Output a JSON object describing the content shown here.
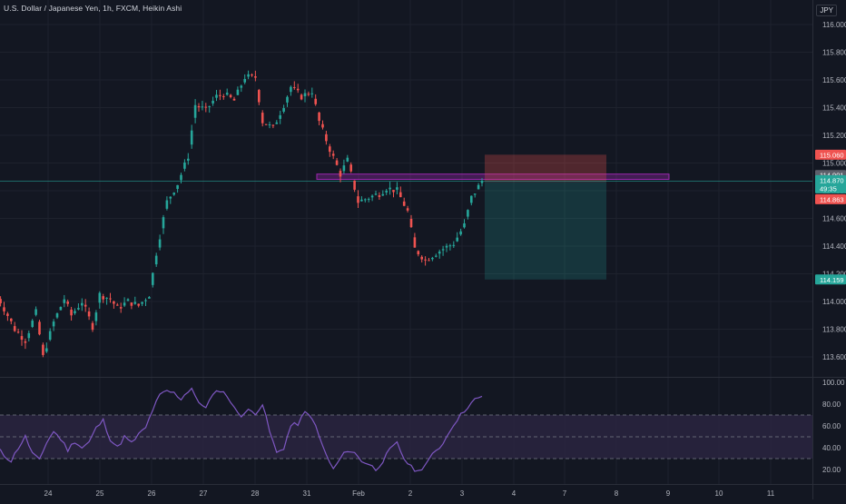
{
  "chart": {
    "title": "U.S. Dollar / Japanese Yen, 1h, FXCM, Heikin Ashi",
    "currency": "JPY",
    "colors": {
      "background": "#131722",
      "up": "#26a69a",
      "down": "#ef5350",
      "rsi_line": "#7e57c2",
      "rsi_band": "#2a2440",
      "zone_border": "#9c27b0",
      "price_line": "#26a69a"
    }
  },
  "chart_data": [
    {
      "type": "candlestick",
      "title": "U.S. Dollar / Japanese Yen, 1h, FXCM, Heikin Ashi",
      "price_axis_ticks": [
        "116.000",
        "115.800",
        "115.600",
        "115.400",
        "115.200",
        "115.000",
        "114.800",
        "114.600",
        "114.400",
        "114.200",
        "114.000",
        "113.800",
        "113.600"
      ],
      "time_axis_ticks": [
        "24",
        "25",
        "26",
        "27",
        "28",
        "31",
        "Feb",
        "2",
        "3",
        "4",
        "7",
        "8",
        "9",
        "10",
        "11"
      ],
      "ylim": [
        113.5,
        116.07
      ],
      "price_labels": [
        {
          "text": "115.060",
          "kind": "stop",
          "color": "#ef5350"
        },
        {
          "text": "114.901",
          "kind": "zone",
          "color": "#5d606b"
        },
        {
          "text": "114.870",
          "kind": "last",
          "color": "#26a69a"
        },
        {
          "text": "49:35",
          "kind": "countdown",
          "color": "#26a69a"
        },
        {
          "text": "114.863",
          "kind": "entry",
          "color": "#ef5350"
        },
        {
          "text": "114.159",
          "kind": "target",
          "color": "#26a69a"
        }
      ],
      "key_path": [
        [
          0,
          114.05
        ],
        [
          2,
          113.95
        ],
        [
          5,
          113.8
        ],
        [
          8,
          113.72
        ],
        [
          11,
          113.92
        ],
        [
          13,
          113.6
        ],
        [
          16,
          113.85
        ],
        [
          19,
          114.02
        ],
        [
          21,
          113.9
        ],
        [
          24,
          114.0
        ],
        [
          27,
          113.82
        ],
        [
          29,
          114.05
        ],
        [
          32,
          114.02
        ],
        [
          34,
          113.95
        ],
        [
          37,
          114.0
        ],
        [
          40,
          113.97
        ],
        [
          43,
          114.05
        ],
        [
          45,
          114.35
        ],
        [
          48,
          114.72
        ],
        [
          51,
          114.85
        ],
        [
          54,
          115.05
        ],
        [
          56,
          115.42
        ],
        [
          59,
          115.38
        ],
        [
          62,
          115.48
        ],
        [
          64,
          115.5
        ],
        [
          67,
          115.45
        ],
        [
          70,
          115.62
        ],
        [
          73,
          115.62
        ],
        [
          75,
          115.3
        ],
        [
          78,
          115.25
        ],
        [
          81,
          115.42
        ],
        [
          83,
          115.55
        ],
        [
          86,
          115.48
        ],
        [
          89,
          115.52
        ],
        [
          91,
          115.3
        ],
        [
          94,
          115.1
        ],
        [
          97,
          114.92
        ],
        [
          99,
          115.02
        ],
        [
          102,
          114.72
        ],
        [
          105,
          114.75
        ],
        [
          108,
          114.78
        ],
        [
          110,
          114.82
        ],
        [
          113,
          114.8
        ],
        [
          116,
          114.65
        ],
        [
          118,
          114.38
        ],
        [
          121,
          114.3
        ],
        [
          124,
          114.35
        ],
        [
          126,
          114.38
        ],
        [
          129,
          114.42
        ],
        [
          132,
          114.55
        ],
        [
          134,
          114.75
        ],
        [
          137,
          114.87
        ]
      ],
      "position_tool": {
        "entry": 114.863,
        "stop": 115.06,
        "target": 114.159
      },
      "resistance_zone": {
        "top": 114.92,
        "bottom": 114.882
      }
    },
    {
      "type": "line",
      "title": "",
      "ylim": [
        13,
        103
      ],
      "y_ticks": [
        "100.00",
        "80.00",
        "60.00",
        "40.00",
        "20.00"
      ],
      "bands": {
        "upper": 70,
        "middle": 50,
        "lower": 30
      },
      "rsi_path": [
        [
          0,
          40
        ],
        [
          2,
          33
        ],
        [
          4,
          28
        ],
        [
          6,
          40
        ],
        [
          8,
          50
        ],
        [
          10,
          35
        ],
        [
          12,
          28
        ],
        [
          14,
          45
        ],
        [
          16,
          55
        ],
        [
          18,
          48
        ],
        [
          20,
          38
        ],
        [
          22,
          46
        ],
        [
          24,
          40
        ],
        [
          26,
          45
        ],
        [
          28,
          58
        ],
        [
          30,
          65
        ],
        [
          32,
          48
        ],
        [
          34,
          40
        ],
        [
          36,
          50
        ],
        [
          38,
          44
        ],
        [
          40,
          52
        ],
        [
          42,
          58
        ],
        [
          44,
          75
        ],
        [
          46,
          88
        ],
        [
          48,
          92
        ],
        [
          50,
          90
        ],
        [
          52,
          85
        ],
        [
          54,
          92
        ],
        [
          55,
          95
        ],
        [
          57,
          80
        ],
        [
          59,
          78
        ],
        [
          61,
          88
        ],
        [
          63,
          93
        ],
        [
          65,
          88
        ],
        [
          67,
          76
        ],
        [
          69,
          70
        ],
        [
          71,
          74
        ],
        [
          73,
          72
        ],
        [
          75,
          80
        ],
        [
          77,
          55
        ],
        [
          79,
          35
        ],
        [
          81,
          40
        ],
        [
          83,
          60
        ],
        [
          85,
          62
        ],
        [
          87,
          72
        ],
        [
          89,
          68
        ],
        [
          91,
          50
        ],
        [
          93,
          33
        ],
        [
          95,
          20
        ],
        [
          97,
          30
        ],
        [
          99,
          38
        ],
        [
          101,
          35
        ],
        [
          103,
          28
        ],
        [
          105,
          25
        ],
        [
          107,
          20
        ],
        [
          109,
          28
        ],
        [
          111,
          38
        ],
        [
          113,
          44
        ],
        [
          115,
          30
        ],
        [
          117,
          22
        ],
        [
          119,
          18
        ],
        [
          121,
          25
        ],
        [
          123,
          33
        ],
        [
          125,
          40
        ],
        [
          127,
          50
        ],
        [
          129,
          62
        ],
        [
          131,
          70
        ],
        [
          133,
          78
        ],
        [
          135,
          84
        ],
        [
          137,
          86
        ]
      ]
    }
  ]
}
